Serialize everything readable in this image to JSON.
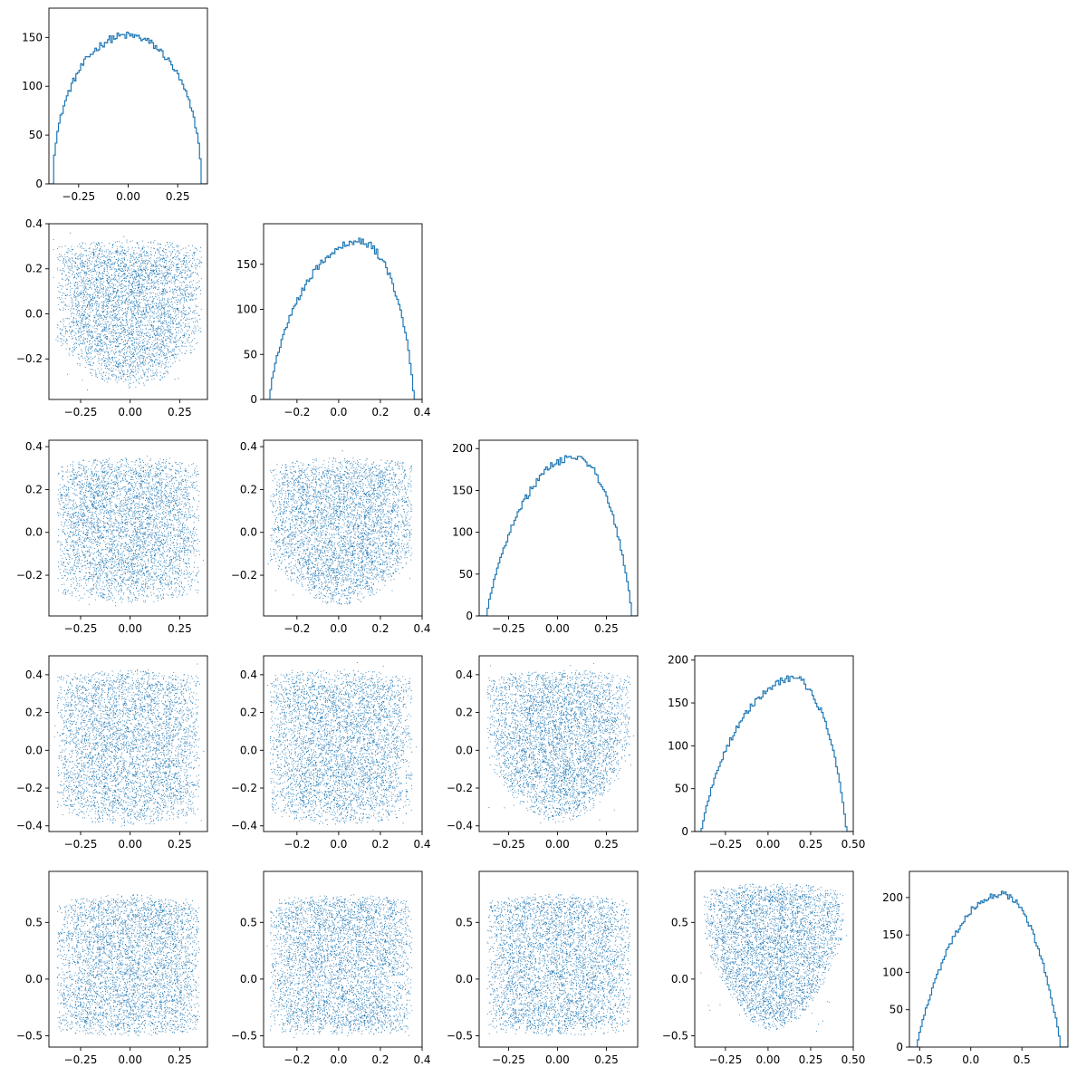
{
  "chart_data": {
    "type": "corner",
    "layout": "lower-triangular 5x5 grid; histograms on the diagonal, scatter plots below",
    "color": "#1f77b4",
    "grid": false,
    "legend": "none",
    "panels": [
      {
        "row": 0,
        "col": 0,
        "kind": "histogram",
        "xlim": [
          -0.4,
          0.4
        ],
        "ylim": [
          0,
          180
        ],
        "xticks": [
          "−0.25",
          "0.00",
          "0.25"
        ],
        "xtick_values": [
          -0.25,
          0,
          0.25
        ],
        "yticks": [
          "0",
          "50",
          "100",
          "150"
        ],
        "ytick_values": [
          0,
          50,
          100,
          150
        ],
        "density": {
          "lo": -0.38,
          "hi": 0.37,
          "skew": 0.0,
          "peak": 152,
          "power": 0.5
        }
      },
      {
        "row": 1,
        "col": 0,
        "kind": "scatter",
        "xlim": [
          -0.41,
          0.39
        ],
        "ylim": [
          -0.38,
          0.4
        ],
        "xticks": [
          "−0.25",
          "0.00",
          "0.25"
        ],
        "xtick_values": [
          -0.25,
          0,
          0.25
        ],
        "yticks": [
          "−0.2",
          "0.0",
          "0.2",
          "0.4"
        ],
        "ytick_values": [
          -0.2,
          0,
          0.2,
          0.4
        ],
        "shape": {
          "x_lo": -0.37,
          "x_hi": 0.36,
          "y_top": 0.33,
          "y_bot_edge": -0.12,
          "y_bot_center": -0.33
        }
      },
      {
        "row": 1,
        "col": 1,
        "kind": "histogram",
        "xlim": [
          -0.36,
          0.4
        ],
        "ylim": [
          0,
          195
        ],
        "xticks": [
          "−0.2",
          "0.0",
          "0.2",
          "0.4"
        ],
        "xtick_values": [
          -0.2,
          0,
          0.2,
          0.4
        ],
        "yticks": [
          "0",
          "50",
          "100",
          "150"
        ],
        "ytick_values": [
          0,
          50,
          100,
          150
        ],
        "density": {
          "lo": -0.33,
          "hi": 0.36,
          "skew": 0.09,
          "peak": 175,
          "power": 0.7
        }
      },
      {
        "row": 2,
        "col": 0,
        "kind": "scatter",
        "xlim": [
          -0.41,
          0.39
        ],
        "ylim": [
          -0.39,
          0.43
        ],
        "xticks": [
          "−0.25",
          "0.00",
          "0.25"
        ],
        "xtick_values": [
          -0.25,
          0,
          0.25
        ],
        "yticks": [
          "−0.2",
          "0.0",
          "0.2",
          "0.4"
        ],
        "ytick_values": [
          -0.2,
          0,
          0.2,
          0.4
        ],
        "shape": {
          "x_lo": -0.37,
          "x_hi": 0.35,
          "y_top": 0.35,
          "y_bot_edge": -0.28,
          "y_bot_center": -0.33
        }
      },
      {
        "row": 2,
        "col": 1,
        "kind": "scatter",
        "xlim": [
          -0.36,
          0.4
        ],
        "ylim": [
          -0.39,
          0.43
        ],
        "xticks": [
          "−0.2",
          "0.0",
          "0.2",
          "0.4"
        ],
        "xtick_values": [
          -0.2,
          0,
          0.2,
          0.4
        ],
        "yticks": [
          "−0.2",
          "0.0",
          "0.2",
          "0.4"
        ],
        "ytick_values": [
          -0.2,
          0,
          0.2,
          0.4
        ],
        "shape": {
          "x_lo": -0.33,
          "x_hi": 0.35,
          "y_top": 0.35,
          "y_bot_edge": -0.12,
          "y_bot_center": -0.34
        }
      },
      {
        "row": 2,
        "col": 2,
        "kind": "histogram",
        "xlim": [
          -0.4,
          0.41
        ],
        "ylim": [
          0,
          210
        ],
        "xticks": [
          "−0.25",
          "0.00",
          "0.25"
        ],
        "xtick_values": [
          -0.25,
          0,
          0.25
        ],
        "yticks": [
          "0",
          "50",
          "100",
          "150",
          "200"
        ],
        "ytick_values": [
          0,
          50,
          100,
          150,
          200
        ],
        "density": {
          "lo": -0.36,
          "hi": 0.38,
          "skew": 0.08,
          "peak": 190,
          "power": 0.8
        }
      },
      {
        "row": 3,
        "col": 0,
        "kind": "scatter",
        "xlim": [
          -0.41,
          0.39
        ],
        "ylim": [
          -0.43,
          0.5
        ],
        "xticks": [
          "−0.25",
          "0.00",
          "0.25"
        ],
        "xtick_values": [
          -0.25,
          0,
          0.25
        ],
        "yticks": [
          "−0.4",
          "−0.2",
          "0.0",
          "0.2",
          "0.4"
        ],
        "ytick_values": [
          -0.4,
          -0.2,
          0,
          0.2,
          0.4
        ],
        "shape": {
          "x_lo": -0.37,
          "x_hi": 0.35,
          "y_top": 0.43,
          "y_bot_edge": -0.33,
          "y_bot_center": -0.4
        }
      },
      {
        "row": 3,
        "col": 1,
        "kind": "scatter",
        "xlim": [
          -0.36,
          0.4
        ],
        "ylim": [
          -0.43,
          0.5
        ],
        "xticks": [
          "−0.2",
          "0.0",
          "0.2",
          "0.4"
        ],
        "xtick_values": [
          -0.2,
          0,
          0.2,
          0.4
        ],
        "yticks": [
          "−0.4",
          "−0.2",
          "0.0",
          "0.2",
          "0.4"
        ],
        "ytick_values": [
          -0.4,
          -0.2,
          0,
          0.2,
          0.4
        ],
        "shape": {
          "x_lo": -0.33,
          "x_hi": 0.35,
          "y_top": 0.43,
          "y_bot_edge": -0.33,
          "y_bot_center": -0.4
        }
      },
      {
        "row": 3,
        "col": 2,
        "kind": "scatter",
        "xlim": [
          -0.4,
          0.41
        ],
        "ylim": [
          -0.43,
          0.5
        ],
        "xticks": [
          "−0.25",
          "0.00",
          "0.25"
        ],
        "xtick_values": [
          -0.25,
          0,
          0.25
        ],
        "yticks": [
          "−0.4",
          "−0.2",
          "0.0",
          "0.2",
          "0.4"
        ],
        "ytick_values": [
          -0.4,
          -0.2,
          0,
          0.2,
          0.4
        ],
        "shape": {
          "x_lo": -0.36,
          "x_hi": 0.37,
          "y_top": 0.43,
          "y_bot_edge": -0.05,
          "y_bot_center": -0.38
        }
      },
      {
        "row": 3,
        "col": 3,
        "kind": "histogram",
        "xlim": [
          -0.43,
          0.5
        ],
        "ylim": [
          0,
          205
        ],
        "xticks": [
          "−0.25",
          "0.00",
          "0.25",
          "0.50"
        ],
        "xtick_values": [
          -0.25,
          0,
          0.25,
          0.5
        ],
        "yticks": [
          "0",
          "50",
          "100",
          "150",
          "200"
        ],
        "ytick_values": [
          0,
          50,
          100,
          150,
          200
        ],
        "density": {
          "lo": -0.39,
          "hi": 0.46,
          "skew": 0.12,
          "peak": 178,
          "power": 0.8
        }
      },
      {
        "row": 4,
        "col": 0,
        "kind": "scatter",
        "xlim": [
          -0.41,
          0.39
        ],
        "ylim": [
          -0.6,
          0.95
        ],
        "xticks": [
          "−0.25",
          "0.00",
          "0.25"
        ],
        "xtick_values": [
          -0.25,
          0,
          0.25
        ],
        "yticks": [
          "−0.5",
          "0.0",
          "0.5"
        ],
        "ytick_values": [
          -0.5,
          0,
          0.5
        ],
        "shape": {
          "x_lo": -0.37,
          "x_hi": 0.35,
          "y_top": 0.75,
          "y_bot_edge": -0.45,
          "y_bot_center": -0.5
        }
      },
      {
        "row": 4,
        "col": 1,
        "kind": "scatter",
        "xlim": [
          -0.36,
          0.4
        ],
        "ylim": [
          -0.6,
          0.95
        ],
        "xticks": [
          "−0.2",
          "0.0",
          "0.2",
          "0.4"
        ],
        "xtick_values": [
          -0.2,
          0,
          0.2,
          0.4
        ],
        "yticks": [
          "−0.5",
          "0.0",
          "0.5"
        ],
        "ytick_values": [
          -0.5,
          0,
          0.5
        ],
        "shape": {
          "x_lo": -0.33,
          "x_hi": 0.35,
          "y_top": 0.75,
          "y_bot_edge": -0.45,
          "y_bot_center": -0.5
        }
      },
      {
        "row": 4,
        "col": 2,
        "kind": "scatter",
        "xlim": [
          -0.4,
          0.41
        ],
        "ylim": [
          -0.6,
          0.95
        ],
        "xticks": [
          "−0.25",
          "0.00",
          "0.25"
        ],
        "xtick_values": [
          -0.25,
          0,
          0.25
        ],
        "yticks": [
          "−0.5",
          "0.0",
          "0.5"
        ],
        "ytick_values": [
          -0.5,
          0,
          0.5
        ],
        "shape": {
          "x_lo": -0.36,
          "x_hi": 0.37,
          "y_top": 0.75,
          "y_bot_edge": -0.45,
          "y_bot_center": -0.5
        }
      },
      {
        "row": 4,
        "col": 3,
        "kind": "scatter",
        "xlim": [
          -0.43,
          0.5
        ],
        "ylim": [
          -0.6,
          0.95
        ],
        "xticks": [
          "−0.25",
          "0.00",
          "0.25",
          "0.50"
        ],
        "xtick_values": [
          -0.25,
          0,
          0.25,
          0.5
        ],
        "yticks": [
          "−0.5",
          "0.0",
          "0.5"
        ],
        "ytick_values": [
          -0.5,
          0,
          0.5
        ],
        "shape": {
          "x_lo": -0.38,
          "x_hi": 0.44,
          "y_top": 0.85,
          "y_bot_edge": 0.35,
          "y_bot_center": -0.45
        }
      },
      {
        "row": 4,
        "col": 4,
        "kind": "histogram",
        "xlim": [
          -0.6,
          0.95
        ],
        "ylim": [
          0,
          235
        ],
        "xticks": [
          "−0.5",
          "0.0",
          "0.5"
        ],
        "xtick_values": [
          -0.5,
          0,
          0.5
        ],
        "yticks": [
          "0",
          "50",
          "100",
          "150",
          "200"
        ],
        "ytick_values": [
          0,
          50,
          100,
          150,
          200
        ],
        "density": {
          "lo": -0.53,
          "hi": 0.88,
          "skew": 0.12,
          "peak": 205,
          "power": 0.9
        }
      }
    ]
  }
}
